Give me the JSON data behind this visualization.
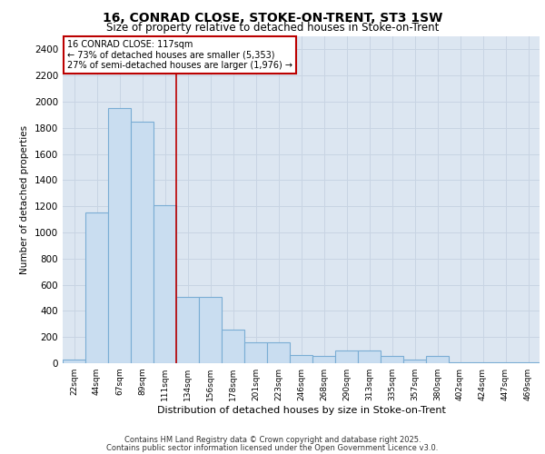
{
  "title_line1": "16, CONRAD CLOSE, STOKE-ON-TRENT, ST3 1SW",
  "title_line2": "Size of property relative to detached houses in Stoke-on-Trent",
  "xlabel": "Distribution of detached houses by size in Stoke-on-Trent",
  "ylabel": "Number of detached properties",
  "categories": [
    "22sqm",
    "44sqm",
    "67sqm",
    "89sqm",
    "111sqm",
    "134sqm",
    "156sqm",
    "178sqm",
    "201sqm",
    "223sqm",
    "246sqm",
    "268sqm",
    "290sqm",
    "313sqm",
    "335sqm",
    "357sqm",
    "380sqm",
    "402sqm",
    "424sqm",
    "447sqm",
    "469sqm"
  ],
  "values": [
    30,
    1150,
    1950,
    1850,
    1210,
    510,
    510,
    260,
    160,
    160,
    60,
    55,
    100,
    100,
    55,
    30,
    55,
    10,
    5,
    5,
    5
  ],
  "bar_color": "#c9ddf0",
  "bar_edge_color": "#7aadd4",
  "grid_color": "#c8d4e3",
  "background_color": "#dce6f1",
  "vline_color": "#bb0000",
  "annotation_text": "16 CONRAD CLOSE: 117sqm\n← 73% of detached houses are smaller (5,353)\n27% of semi-detached houses are larger (1,976) →",
  "annotation_box_color": "#ffffff",
  "annotation_box_edge_color": "#bb0000",
  "footer_line1": "Contains HM Land Registry data © Crown copyright and database right 2025.",
  "footer_line2": "Contains public sector information licensed under the Open Government Licence v3.0.",
  "ylim": [
    0,
    2500
  ],
  "yticks": [
    0,
    200,
    400,
    600,
    800,
    1000,
    1200,
    1400,
    1600,
    1800,
    2000,
    2200,
    2400
  ]
}
